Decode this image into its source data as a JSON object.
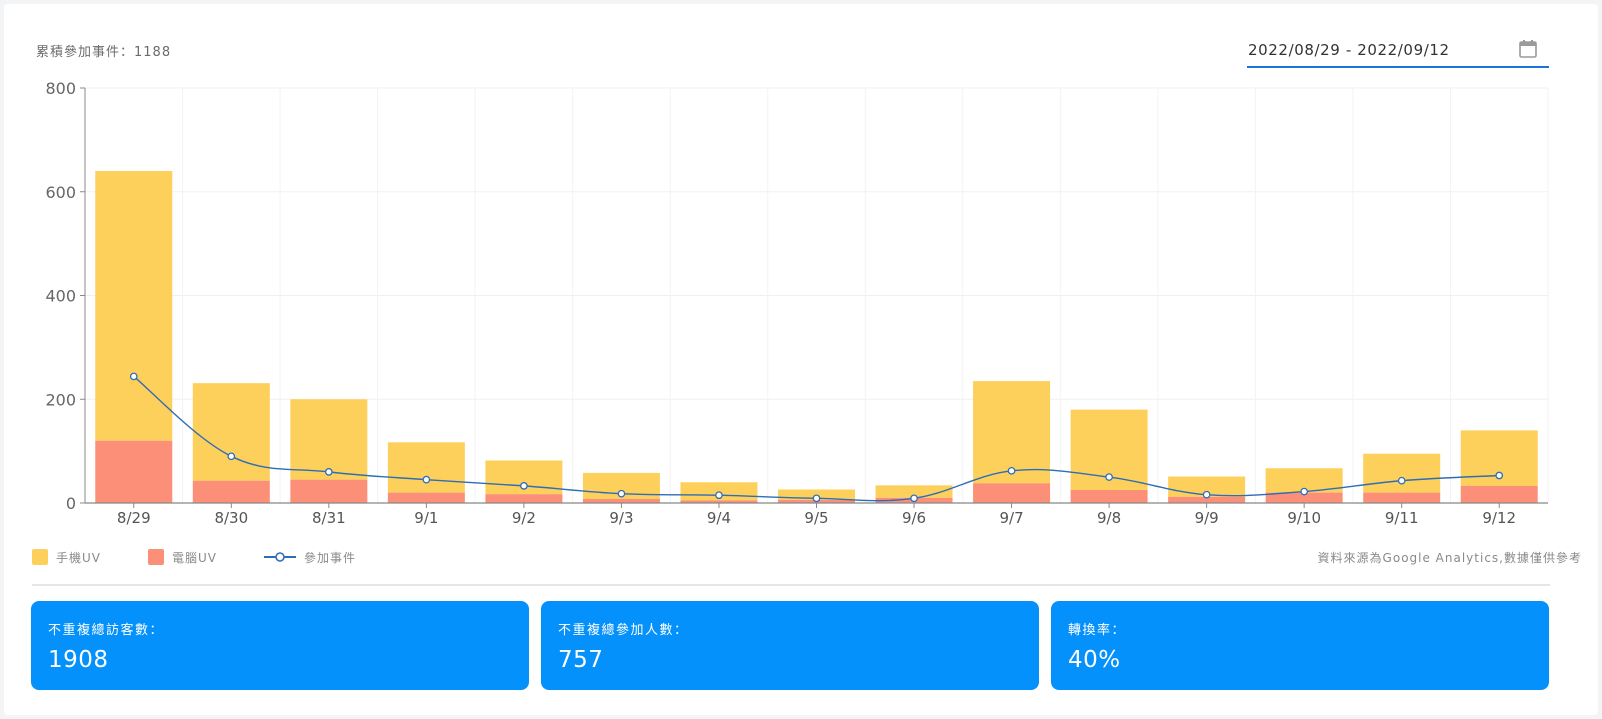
{
  "header": {
    "total_events_label": "累積參加事件：1188",
    "date_range": "2022/08/29 - 2022/09/12",
    "calendar_icon": "calendar-icon"
  },
  "colors": {
    "mobile_uv": "#fdd05b",
    "desktop_uv": "#fc8f77",
    "events_line": "#2f6db5",
    "stat_card": "#0591fb",
    "date_underline": "#1e73d8"
  },
  "chart_data": {
    "type": "bar",
    "stacked": true,
    "categories": [
      "8/29",
      "8/30",
      "8/31",
      "9/1",
      "9/2",
      "9/3",
      "9/4",
      "9/5",
      "9/6",
      "9/7",
      "9/8",
      "9/9",
      "9/10",
      "9/11",
      "9/12"
    ],
    "series": [
      {
        "name": "手機UV",
        "type": "bar",
        "values": [
          520,
          188,
          155,
          97,
          65,
          50,
          35,
          20,
          24,
          197,
          155,
          39,
          47,
          75,
          107
        ]
      },
      {
        "name": "電腦UV",
        "type": "bar",
        "values": [
          120,
          43,
          45,
          20,
          17,
          8,
          5,
          6,
          10,
          38,
          25,
          12,
          20,
          20,
          33
        ]
      },
      {
        "name": "參加事件",
        "type": "line",
        "values": [
          244,
          90,
          60,
          45,
          33,
          18,
          15,
          9,
          9,
          62,
          50,
          16,
          22,
          43,
          53
        ]
      }
    ],
    "y_ticks": [
      0,
      200,
      400,
      600,
      800
    ],
    "ylim": [
      0,
      800
    ],
    "grid": true,
    "legend_position": "bottom-left"
  },
  "legend": {
    "items": [
      {
        "label": "手機UV"
      },
      {
        "label": "電腦UV"
      },
      {
        "label": "參加事件"
      }
    ],
    "source_note": "資料來源為Google Analytics,數據僅供參考"
  },
  "stats": [
    {
      "label": "不重複總訪客數：",
      "value": "1908"
    },
    {
      "label": "不重複總參加人數：",
      "value": "757"
    },
    {
      "label": "轉換率：",
      "value": "40%"
    }
  ]
}
